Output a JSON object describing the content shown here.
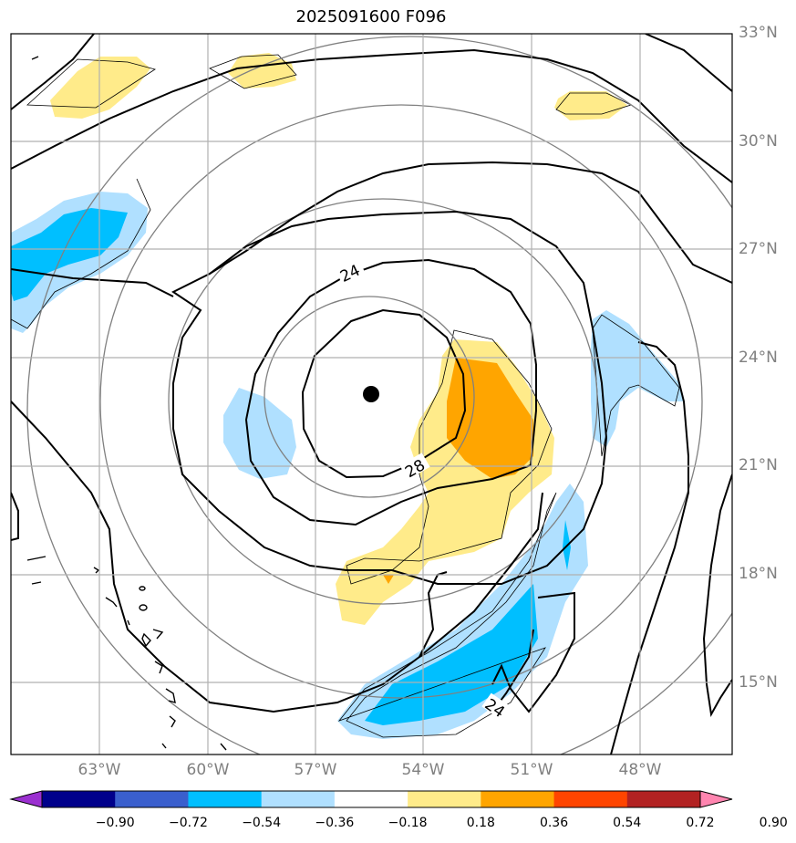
{
  "title": "2025091600 F096",
  "latitude_labels": [
    "33°N",
    "30°N",
    "27°N",
    "24°N",
    "21°N",
    "18°N",
    "15°N"
  ],
  "longitude_labels": [
    "63°W",
    "60°W",
    "57°W",
    "54°W",
    "51°W",
    "48°W"
  ],
  "contour_labels": [
    "24",
    "28",
    "24"
  ],
  "colorbar": {
    "ticks": [
      "−0.90",
      "−0.72",
      "−0.54",
      "−0.36",
      "−0.18",
      "0.18",
      "0.36",
      "0.54",
      "0.72",
      "0.90"
    ],
    "colors": [
      "#9b30d0",
      "#00008b",
      "#3a5fcd",
      "#00bfff",
      "#b0e0ff",
      "#ffffff",
      "#ffeb8a",
      "#ffa500",
      "#ff4500",
      "#b22222",
      "#ff85b0"
    ]
  },
  "storm_center": {
    "lat": 23.0,
    "lon": -55.5
  },
  "colors": {
    "black_contour": "#000000",
    "gray_contour": "#808080",
    "grid": "#b0b0b0"
  }
}
